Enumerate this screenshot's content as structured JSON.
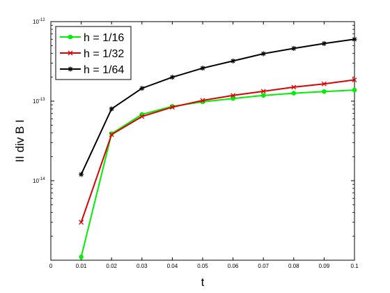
{
  "chart_data": {
    "type": "line",
    "title": "",
    "xlabel": "t",
    "ylabel": "II div B I",
    "x": [
      0.01,
      0.02,
      0.03,
      0.04,
      0.05,
      0.06,
      0.07,
      0.08,
      0.09,
      0.1
    ],
    "xlim": [
      0,
      0.1
    ],
    "ylim": [
      1e-15,
      1e-12
    ],
    "yscale": "log",
    "x_tick_labels": [
      "0",
      "0.01",
      "0.02",
      "0.03",
      "0.04",
      "0.05",
      "0.06",
      "0.07",
      "0.08",
      "0.09",
      "0.1"
    ],
    "y_ticks": [
      {
        "value": 1e-12,
        "base": "10",
        "exp": "-12"
      },
      {
        "value": 1e-13,
        "base": "10",
        "exp": "-13"
      },
      {
        "value": 1e-14,
        "base": "10",
        "exp": "-14"
      }
    ],
    "grid": false,
    "legend_position": "top-left",
    "series": [
      {
        "name": "h = 1/16",
        "color": "#00ee00",
        "marker": "circle",
        "values": [
          1.1e-15,
          3.9e-14,
          6.8e-14,
          8.6e-14,
          9.8e-14,
          1.08e-13,
          1.18e-13,
          1.26e-13,
          1.32e-13,
          1.38e-13
        ]
      },
      {
        "name": "h = 1/32",
        "color": "#dd0000",
        "marker": "x",
        "values": [
          3e-15,
          3.8e-14,
          6.4e-14,
          8.4e-14,
          1.02e-13,
          1.18e-13,
          1.33e-13,
          1.5e-13,
          1.65e-13,
          1.85e-13
        ]
      },
      {
        "name": "h = 1/64",
        "color": "#000000",
        "marker": "star",
        "values": [
          1.2e-14,
          8e-14,
          1.45e-13,
          2e-13,
          2.6e-13,
          3.2e-13,
          3.95e-13,
          4.6e-13,
          5.3e-13,
          6e-13
        ]
      }
    ]
  }
}
